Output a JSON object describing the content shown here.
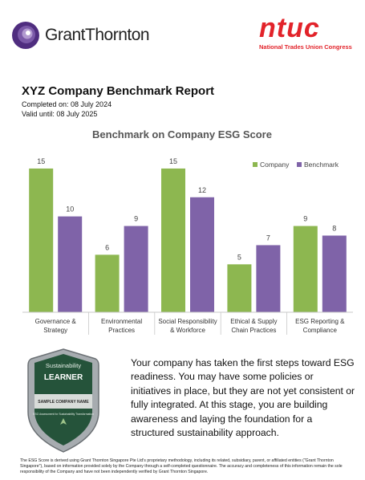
{
  "header": {
    "gt_logo_text": "GrantThornton",
    "ntuc_logo_text": "ntuc",
    "ntuc_subtitle": "National Trades Union Congress"
  },
  "report": {
    "title": "XYZ Company Benchmark Report",
    "completed": "Completed on: 08 July 2024",
    "valid": "Valid until: 08 July 2025"
  },
  "chart_data": {
    "type": "bar",
    "title": "Benchmark on Company ESG Score",
    "categories": [
      [
        "Governance &",
        "Strategy"
      ],
      [
        "Environmental",
        "Practices"
      ],
      [
        "Social Responsibility",
        "& Workforce"
      ],
      [
        "Ethical & Supply",
        "Chain Practices"
      ],
      [
        "ESG Reporting &",
        "Compliance"
      ]
    ],
    "series": [
      {
        "name": "Company",
        "values": [
          15,
          6,
          15,
          5,
          9
        ],
        "color": "#8db750"
      },
      {
        "name": "Benchmark",
        "values": [
          10,
          9,
          12,
          7,
          8
        ],
        "color": "#7f63a8"
      }
    ],
    "ylim": [
      0,
      16
    ],
    "grid": false,
    "legend": "top-right"
  },
  "badge": {
    "top_text": "Sustainability",
    "level": "LEARNER",
    "company": "SAMPLE COMPANY NAME",
    "assessment": "ESG Assessment for Sustainability Transformation",
    "colors": {
      "outer": "#9aa0a4",
      "inner": "#2a5a3a",
      "band": "#3f6e4d"
    }
  },
  "message": "Your company has taken the first steps toward ESG readiness. You may have some policies or initiatives in place, but they are not yet consistent or fully integrated. At this stage, you are building awareness and laying the foundation for a structured sustainability approach.",
  "footer": "The ESG Score is derived using Grant Thornton Singapore Pte Ltd's proprietary methodology, including its related, subsidiary, parent, or affiliated entities (\"Grant Thornton Singapore\"), based on information provided solely by the Company through a self-completed questionnaire. The accuracy and completeness of this information remain the sole responsibility of the Company and have not been independently verified by Grant Thornton Singapore."
}
